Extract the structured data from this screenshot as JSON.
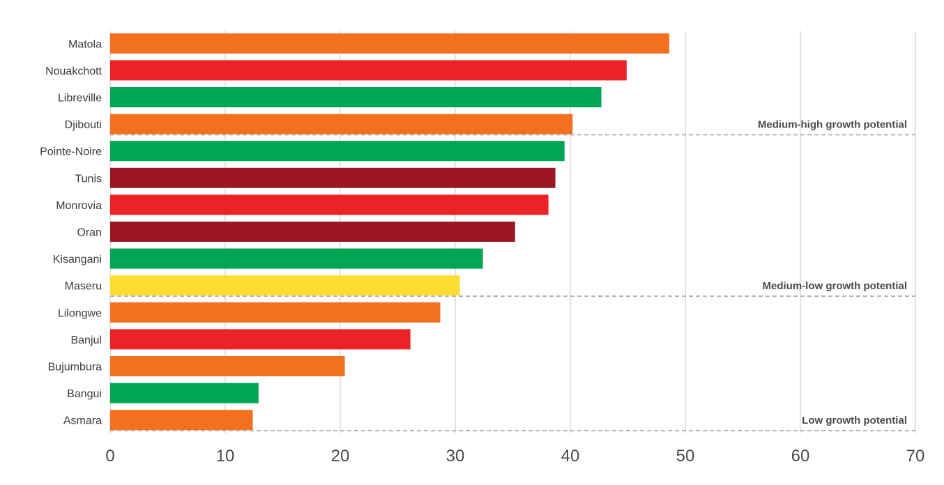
{
  "chart_data": {
    "type": "bar",
    "orientation": "horizontal",
    "title": "",
    "xlabel": "",
    "ylabel": "",
    "xlim": [
      0,
      70
    ],
    "x_ticks": [
      0,
      10,
      20,
      30,
      40,
      50,
      60,
      70
    ],
    "grid": true,
    "categories": [
      "Matola",
      "Nouakchott",
      "Libreville",
      "Djibouti",
      "Pointe-Noire",
      "Tunis",
      "Monrovia",
      "Oran",
      "Kisangani",
      "Maseru",
      "Lilongwe",
      "Banjul",
      "Bujumbura",
      "Bangui",
      "Asmara"
    ],
    "values": [
      48.6,
      44.9,
      42.7,
      40.2,
      39.5,
      38.7,
      38.1,
      35.2,
      32.4,
      30.4,
      28.7,
      26.1,
      20.4,
      12.9,
      12.4
    ],
    "bar_colors": [
      "#f37021",
      "#ed2227",
      "#00a651",
      "#f37021",
      "#00a651",
      "#9d1623",
      "#ed2227",
      "#9d1623",
      "#00a651",
      "#fedd33",
      "#f37021",
      "#ed2227",
      "#f37021",
      "#00a651",
      "#f37021"
    ],
    "bands": [
      {
        "label": "Medium-high growth potential",
        "last_category": "Djibouti"
      },
      {
        "label": "Medium-low growth potential",
        "last_category": "Maseru"
      },
      {
        "label": "Low growth potential",
        "last_category": "Asmara"
      }
    ]
  }
}
